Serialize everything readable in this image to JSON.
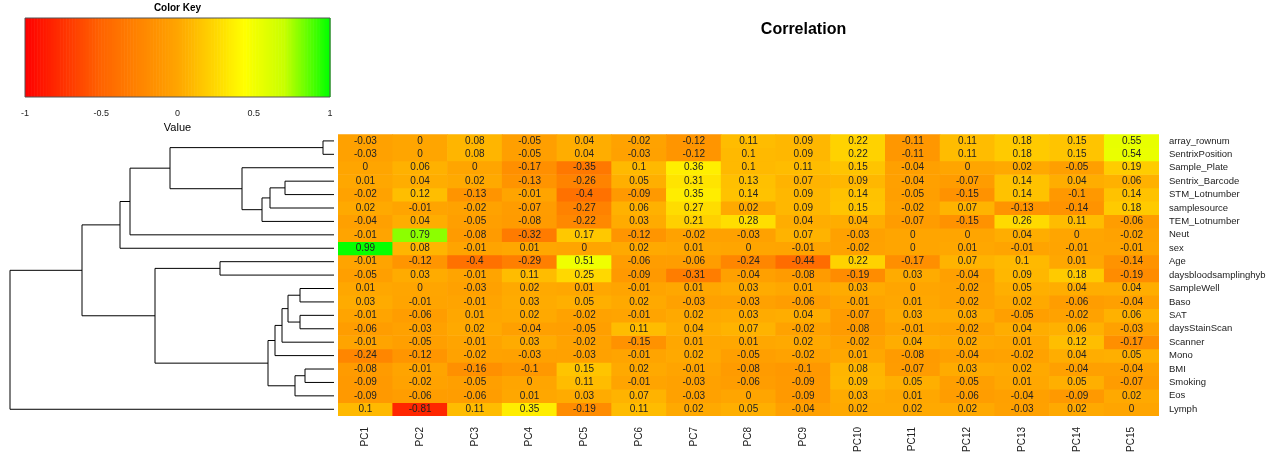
{
  "chart_data": {
    "type": "heatmap",
    "title": "Correlation",
    "legend_title": "Color Key",
    "clabel": "Value",
    "clim": [
      -1,
      1
    ],
    "cticks": [
      -1,
      -0.5,
      0,
      0.5,
      1
    ],
    "data_labels": true,
    "categories": [
      "PC1",
      "PC2",
      "PC3",
      "PC4",
      "PC5",
      "PC6",
      "PC7",
      "PC8",
      "PC9",
      "PC10",
      "PC11",
      "PC12",
      "PC13",
      "PC14",
      "PC15"
    ],
    "y_categories": [
      "array_rownum",
      "SentrixPosition",
      "Sample_Plate",
      "Sentrix_Barcode",
      "STM_Lotnumber",
      "samplesource",
      "TEM_Lotnumber",
      "Neut",
      "sex",
      "Age",
      "daysbloodsamplinghyb",
      "SampleWell",
      "Baso",
      "SAT",
      "daysStainScan",
      "Scanner",
      "Mono",
      "BMI",
      "Smoking",
      "Eos",
      "Lymph"
    ],
    "cells": [
      [
        -0.03,
        0,
        0.08,
        -0.05,
        0.04,
        -0.02,
        -0.12,
        0.11,
        0.09,
        0.22,
        -0.11,
        0.11,
        0.18,
        0.15,
        0.55
      ],
      [
        -0.03,
        0,
        0.08,
        -0.05,
        0.04,
        -0.03,
        -0.12,
        0.1,
        0.09,
        0.22,
        -0.11,
        0.11,
        0.18,
        0.15,
        0.54
      ],
      [
        0,
        0.06,
        0,
        -0.17,
        -0.35,
        0.1,
        0.36,
        0.1,
        0.11,
        0.15,
        -0.04,
        0,
        0.02,
        -0.05,
        0.19
      ],
      [
        0.01,
        0.04,
        0.02,
        -0.13,
        -0.26,
        0.05,
        0.31,
        0.13,
        0.07,
        0.09,
        -0.04,
        -0.07,
        0.14,
        0.04,
        0.06
      ],
      [
        -0.02,
        0.12,
        -0.13,
        -0.01,
        -0.4,
        -0.09,
        0.35,
        0.14,
        0.09,
        0.14,
        -0.05,
        -0.15,
        0.14,
        -0.1,
        0.14
      ],
      [
        0.02,
        -0.01,
        -0.02,
        -0.07,
        -0.27,
        0.06,
        0.27,
        0.02,
        0.09,
        0.15,
        -0.02,
        0.07,
        -0.13,
        -0.14,
        0.18
      ],
      [
        -0.04,
        0.04,
        -0.05,
        -0.08,
        -0.22,
        0.03,
        0.21,
        0.28,
        0.04,
        0.04,
        -0.07,
        -0.15,
        0.26,
        0.11,
        -0.06
      ],
      [
        -0.01,
        0.79,
        -0.08,
        -0.32,
        0.17,
        -0.12,
        -0.02,
        -0.03,
        0.07,
        -0.03,
        0,
        0,
        0.04,
        0,
        -0.02
      ],
      [
        0.99,
        0.08,
        -0.01,
        0.01,
        0,
        0.02,
        0.01,
        0,
        -0.01,
        -0.02,
        0,
        0.01,
        -0.01,
        -0.01,
        -0.01
      ],
      [
        -0.01,
        -0.12,
        -0.4,
        -0.29,
        0.51,
        -0.06,
        -0.06,
        -0.24,
        -0.44,
        0.22,
        -0.17,
        0.07,
        0.1,
        0.01,
        -0.14
      ],
      [
        -0.05,
        0.03,
        -0.01,
        0.11,
        0.25,
        -0.09,
        -0.31,
        -0.04,
        -0.08,
        -0.19,
        0.03,
        -0.04,
        0.09,
        0.18,
        -0.19
      ],
      [
        0.01,
        0,
        -0.03,
        0.02,
        0.01,
        -0.01,
        0.01,
        0.03,
        0.01,
        0.03,
        0,
        -0.02,
        0.05,
        0.04,
        0.04
      ],
      [
        0.03,
        -0.01,
        -0.01,
        0.03,
        0.05,
        0.02,
        -0.03,
        -0.03,
        -0.06,
        -0.01,
        0.01,
        -0.02,
        0.02,
        -0.06,
        -0.04
      ],
      [
        -0.01,
        -0.06,
        0.01,
        0.02,
        -0.02,
        -0.01,
        0.02,
        0.03,
        0.04,
        -0.07,
        0.03,
        0.03,
        -0.05,
        -0.02,
        0.06
      ],
      [
        -0.06,
        -0.03,
        0.02,
        -0.04,
        -0.05,
        0.11,
        0.04,
        0.07,
        -0.02,
        -0.08,
        -0.01,
        -0.02,
        0.04,
        0.06,
        -0.03
      ],
      [
        -0.01,
        -0.05,
        -0.01,
        0.03,
        -0.02,
        -0.15,
        0.01,
        0.01,
        0.02,
        -0.02,
        0.04,
        0.02,
        0.01,
        0.12,
        -0.17
      ],
      [
        -0.24,
        -0.12,
        -0.02,
        -0.03,
        -0.03,
        -0.01,
        0.02,
        -0.05,
        -0.02,
        0.01,
        -0.08,
        -0.04,
        -0.02,
        0.04,
        0.05
      ],
      [
        -0.08,
        -0.01,
        -0.16,
        -0.1,
        0.15,
        0.02,
        -0.01,
        -0.08,
        -0.1,
        0.08,
        -0.07,
        0.03,
        0.02,
        -0.04,
        -0.04
      ],
      [
        -0.09,
        -0.02,
        -0.05,
        0,
        0.11,
        -0.01,
        -0.03,
        -0.06,
        -0.09,
        0.09,
        0.05,
        -0.05,
        0.01,
        0.05,
        -0.07
      ],
      [
        -0.09,
        -0.06,
        -0.06,
        0.01,
        0.03,
        0.07,
        -0.03,
        0,
        -0.09,
        0.03,
        0.01,
        -0.06,
        -0.04,
        -0.09,
        0.02
      ],
      [
        0.1,
        -0.81,
        0.11,
        0.35,
        -0.19,
        0.11,
        0.02,
        0.05,
        -0.04,
        0.02,
        0.02,
        0.02,
        -0.03,
        0.02,
        0
      ]
    ]
  }
}
